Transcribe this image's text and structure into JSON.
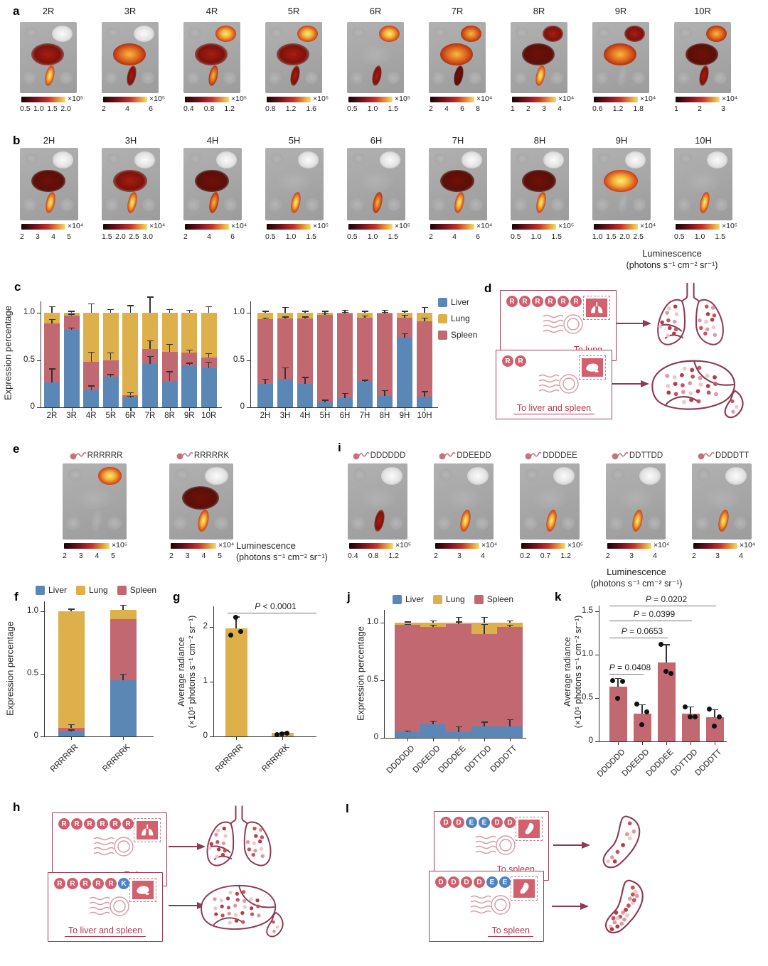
{
  "figure": {
    "panel_labels": {
      "a": "a",
      "b": "b",
      "c": "c",
      "d": "d",
      "e": "e",
      "f": "f",
      "g": "g",
      "h": "h",
      "i": "i",
      "j": "j",
      "k": "k",
      "l": "l"
    },
    "luminescence_label": "Luminescence",
    "luminescence_units": "(photons s⁻¹ cm⁻² sr⁻¹)"
  },
  "colors": {
    "liver_bar": "#5b87b7",
    "lung_bar": "#ddb04c",
    "spleen_bar": "#c16871",
    "illustration_outline": "#8d3a52",
    "letter_pink": "#d05f6d",
    "letter_blue": "#4d82c4",
    "dest_text": "#b03a50",
    "scale_gradient": [
      "#1a0404",
      "#7c1420",
      "#c73428",
      "#e89a3c",
      "#eee069"
    ]
  },
  "panel_a": {
    "tiles": [
      {
        "title": "2R",
        "scale_ticks": [
          "0.5",
          "1.0",
          "1.5",
          "2.0"
        ],
        "scale_exp": "×10⁵",
        "organs": {
          "lungs": "white",
          "liver": "red",
          "spleen": "hot"
        }
      },
      {
        "title": "3R",
        "scale_ticks": [
          "2",
          "4",
          "6"
        ],
        "scale_exp": "×10⁵",
        "organs": {
          "lungs": "white",
          "liver": "orange",
          "spleen": "red"
        }
      },
      {
        "title": "4R",
        "scale_ticks": [
          "0.4",
          "0.8",
          "1.2"
        ],
        "scale_exp": "×10⁵",
        "organs": {
          "lungs": "hot",
          "liver": "red",
          "spleen": "orange"
        }
      },
      {
        "title": "5R",
        "scale_ticks": [
          "0.8",
          "1.2",
          "1.6"
        ],
        "scale_exp": "×10⁵",
        "organs": {
          "lungs": "hot",
          "liver": "red",
          "spleen": "red"
        }
      },
      {
        "title": "6R",
        "scale_ticks": [
          "0.5",
          "1.0",
          "1.5"
        ],
        "scale_exp": "×10⁵",
        "organs": {
          "lungs": "hot",
          "liver": "none",
          "spleen": "red"
        }
      },
      {
        "title": "7R",
        "scale_ticks": [
          "2",
          "4",
          "6",
          "8"
        ],
        "scale_exp": "×10⁴",
        "organs": {
          "lungs": "orange",
          "liver": "orange",
          "spleen": "darkred"
        }
      },
      {
        "title": "8R",
        "scale_ticks": [
          "1",
          "2",
          "3",
          "4"
        ],
        "scale_exp": "×10⁴",
        "organs": {
          "lungs": "red",
          "liver": "darkred",
          "spleen": "hot"
        }
      },
      {
        "title": "9R",
        "scale_ticks": [
          "0.6",
          "1.2",
          "1.8"
        ],
        "scale_exp": "×10⁴",
        "organs": {
          "lungs": "red",
          "liver": "orange",
          "spleen": "none"
        }
      },
      {
        "title": "10R",
        "scale_ticks": [
          "1",
          "2",
          "3"
        ],
        "scale_exp": "×10⁴",
        "organs": {
          "lungs": "orange",
          "liver": "darkred",
          "spleen": "red"
        }
      }
    ]
  },
  "panel_b": {
    "tiles": [
      {
        "title": "2H",
        "scale_ticks": [
          "2",
          "3",
          "4",
          "5"
        ],
        "scale_exp": "×10⁴",
        "organs": {
          "lungs": "white",
          "liver": "darkred",
          "spleen": "hot"
        }
      },
      {
        "title": "3H",
        "scale_ticks": [
          "1.5",
          "2.0",
          "2.5",
          "3.0"
        ],
        "scale_exp": "×10⁴",
        "organs": {
          "lungs": "white",
          "liver": "red",
          "spleen": "hot"
        }
      },
      {
        "title": "4H",
        "scale_ticks": [
          "2",
          "4",
          "6"
        ],
        "scale_exp": "×10⁴",
        "organs": {
          "lungs": "white",
          "liver": "darkred",
          "spleen": "orange"
        }
      },
      {
        "title": "5H",
        "scale_ticks": [
          "0.5",
          "1.0",
          "1.5"
        ],
        "scale_exp": "×10⁵",
        "organs": {
          "lungs": "white",
          "liver": "none",
          "spleen": "hot"
        }
      },
      {
        "title": "6H",
        "scale_ticks": [
          "0.5",
          "1.0",
          "1.5"
        ],
        "scale_exp": "×10⁵",
        "organs": {
          "lungs": "white",
          "liver": "none",
          "spleen": "orange"
        }
      },
      {
        "title": "7H",
        "scale_ticks": [
          "2",
          "4",
          "6"
        ],
        "scale_exp": "×10⁴",
        "organs": {
          "lungs": "white",
          "liver": "darkred",
          "spleen": "hot"
        }
      },
      {
        "title": "8H",
        "scale_ticks": [
          "0.5",
          "1.0",
          "1.5"
        ],
        "scale_exp": "×10⁵",
        "organs": {
          "lungs": "white",
          "liver": "darkred",
          "spleen": "hot"
        }
      },
      {
        "title": "9H",
        "scale_ticks": [
          "1.0",
          "1.5",
          "2.0",
          "2.5"
        ],
        "scale_exp": "×10⁴",
        "organs": {
          "lungs": "white",
          "liver": "hot",
          "spleen": "none"
        }
      },
      {
        "title": "10H",
        "scale_ticks": [
          "0.5",
          "1.0",
          "1.5"
        ],
        "scale_exp": "×10⁵",
        "organs": {
          "lungs": "white",
          "liver": "none",
          "spleen": "hot"
        }
      }
    ]
  },
  "panel_e": {
    "tiles": [
      {
        "title": "RRRRRR",
        "scale_ticks": [
          "2",
          "3",
          "4",
          "5"
        ],
        "scale_exp": "×10⁵",
        "organs": {
          "lungs": "hot",
          "liver": "none",
          "spleen": "none"
        }
      },
      {
        "title": "RRRRRK",
        "scale_ticks": [
          "2",
          "3",
          "4",
          "5"
        ],
        "scale_exp": "×10⁴",
        "organs": {
          "lungs": "white",
          "liver": "darkred",
          "spleen": "hot"
        }
      }
    ]
  },
  "panel_i": {
    "tiles": [
      {
        "title": "DDDDDD",
        "scale_ticks": [
          "0.4",
          "0.8",
          "1.2"
        ],
        "scale_exp": "×10⁵",
        "organs": {
          "lungs": "white",
          "liver": "none",
          "spleen": "red"
        }
      },
      {
        "title": "DDEEDD",
        "scale_ticks": [
          "2",
          "3",
          "4"
        ],
        "scale_exp": "×10⁴",
        "organs": {
          "lungs": "white",
          "liver": "none",
          "spleen": "hot"
        }
      },
      {
        "title": "DDDDEE",
        "scale_ticks": [
          "0.2",
          "0.7",
          "1.2"
        ],
        "scale_exp": "×10⁵",
        "organs": {
          "lungs": "white",
          "liver": "none",
          "spleen": "hot"
        }
      },
      {
        "title": "DDTTDD",
        "scale_ticks": [
          "2",
          "3",
          "4"
        ],
        "scale_exp": "×10⁴",
        "organs": {
          "lungs": "white",
          "liver": "none",
          "spleen": "hot"
        }
      },
      {
        "title": "DDDDTT",
        "scale_ticks": [
          "2",
          "3",
          "4"
        ],
        "scale_exp": "×10⁴",
        "organs": {
          "lungs": "white",
          "liver": "none",
          "spleen": "hot"
        }
      }
    ]
  },
  "chart_data": [
    {
      "id": "c_left",
      "type": "stacked_bar",
      "ylabel": "Expression percentage",
      "yticks": [
        "0",
        "0.5",
        "1.0"
      ],
      "ylim": [
        0,
        1.17
      ],
      "categories": [
        "2R",
        "3R",
        "4R",
        "5R",
        "6R",
        "7R",
        "8R",
        "9R",
        "10R"
      ],
      "series": [
        {
          "name": "Liver",
          "values": [
            0.26,
            0.82,
            0.18,
            0.32,
            0.1,
            0.46,
            0.28,
            0.44,
            0.41
          ]
        },
        {
          "name": "Spleen",
          "values": [
            0.63,
            0.15,
            0.3,
            0.18,
            0.03,
            0.16,
            0.31,
            0.14,
            0.12
          ]
        },
        {
          "name": "Lung",
          "values": [
            0.11,
            0.03,
            0.52,
            0.5,
            0.87,
            0.38,
            0.41,
            0.42,
            0.47
          ]
        }
      ],
      "errors": {
        "liver": [
          0.15,
          0.02,
          0.05,
          0.03,
          0.02,
          0.08,
          0.1,
          0.03,
          0.07
        ],
        "liver_spleen": [
          0.04,
          0.02,
          0.11,
          0.08,
          0.03,
          0.09,
          0.08,
          0.03,
          0.04
        ],
        "total": [
          0.07,
          0.02,
          0.1,
          0.04,
          0.08,
          0.17,
          0.04,
          0.03,
          0.07
        ]
      }
    },
    {
      "id": "c_right",
      "type": "stacked_bar",
      "ylabel": "",
      "yticks": [
        "0",
        "0.5",
        "1.0"
      ],
      "ylim": [
        0,
        1.17
      ],
      "categories": [
        "2H",
        "3H",
        "4H",
        "5H",
        "6H",
        "7H",
        "8H",
        "9H",
        "10H"
      ],
      "series": [
        {
          "name": "Liver",
          "values": [
            0.25,
            0.3,
            0.25,
            0.05,
            0.1,
            0.27,
            0.12,
            0.74,
            0.11
          ]
        },
        {
          "name": "Spleen",
          "values": [
            0.68,
            0.64,
            0.69,
            0.93,
            0.89,
            0.68,
            0.87,
            0.21,
            0.8
          ]
        },
        {
          "name": "Lung",
          "values": [
            0.07,
            0.06,
            0.06,
            0.02,
            0.01,
            0.05,
            0.01,
            0.05,
            0.09
          ]
        }
      ],
      "errors": {
        "liver": [
          0.05,
          0.12,
          0.07,
          0.03,
          0.05,
          0.02,
          0.06,
          0.04,
          0.06
        ],
        "liver_spleen": [
          0.02,
          0.02,
          0.02,
          0.02,
          0.02,
          0.02,
          0.02,
          0.03,
          0.04
        ],
        "total": [
          0.02,
          0.06,
          0.02,
          0.02,
          0.03,
          0.02,
          0.03,
          0.02,
          0.06
        ]
      },
      "legend": [
        "Liver",
        "Lung",
        "Spleen"
      ],
      "legend_position": "right"
    },
    {
      "id": "f",
      "type": "stacked_bar",
      "ylabel": "Expression percentage",
      "yticks": [
        "0",
        "0.5",
        "1.0"
      ],
      "ylim": [
        0,
        1.08
      ],
      "categories": [
        "RRRRRR",
        "RRRRRK"
      ],
      "series": [
        {
          "name": "Liver",
          "values": [
            0.04,
            0.45
          ]
        },
        {
          "name": "Spleen",
          "values": [
            0.03,
            0.49
          ]
        },
        {
          "name": "Lung",
          "values": [
            0.93,
            0.07
          ]
        }
      ],
      "errors": {
        "liver": [
          0.015,
          0.05
        ],
        "liver_spleen": [
          0.025,
          0.0
        ],
        "total": [
          0.02,
          0.04
        ]
      },
      "legend": [
        "Liver",
        "Lung",
        "Spleen"
      ],
      "legend_position": "top",
      "rotate_categories": true
    },
    {
      "id": "g",
      "type": "bar",
      "bar_color": "lung",
      "yticks": [
        "0",
        "1",
        "2"
      ],
      "ylim": [
        0,
        2.35
      ],
      "ylabel": "Average radiance",
      "ylabel_units": "(×10⁵ photons s⁻¹ cm⁻² sr⁻¹)",
      "categories": [
        "RRRRRR",
        "RRRRRK"
      ],
      "values": [
        1.97,
        0.06
      ],
      "errors": [
        0.22,
        0.02
      ],
      "points": [
        [
          1.85,
          1.92,
          2.18
        ],
        [
          0.03,
          0.06,
          0.04
        ]
      ],
      "significance": [
        {
          "label": "P < 0.0001",
          "from": "RRRRRR",
          "to": "RRRRRK"
        }
      ],
      "rotate_categories": true
    },
    {
      "id": "j",
      "type": "stacked_bar",
      "ylabel": "Expression percentage",
      "yticks": [
        "0",
        "0.5",
        "1.0"
      ],
      "ylim": [
        0,
        1.1
      ],
      "categories": [
        "DDDDDD",
        "DDEEDD",
        "DDDDEE",
        "DDTTDD",
        "DDDDTT"
      ],
      "series": [
        {
          "name": "Liver",
          "values": [
            0.05,
            0.12,
            0.05,
            0.1,
            0.1
          ]
        },
        {
          "name": "Spleen",
          "values": [
            0.93,
            0.84,
            0.94,
            0.8,
            0.86
          ]
        },
        {
          "name": "Lung",
          "values": [
            0.02,
            0.04,
            0.01,
            0.1,
            0.04
          ]
        }
      ],
      "errors": {
        "liver": [
          0.01,
          0.03,
          0.05,
          0.04,
          0.06
        ],
        "liver_spleen": [
          0.01,
          0.02,
          0.02,
          0.09,
          0.02
        ],
        "total": [
          0.01,
          0.02,
          0.05,
          0.05,
          0.02
        ]
      },
      "legend": [
        "Liver",
        "Lung",
        "Spleen"
      ],
      "legend_position": "top",
      "rotate_categories": true
    },
    {
      "id": "k",
      "type": "bar",
      "bar_color": "spleen",
      "yticks": [
        "0",
        "0.5",
        "1.0",
        "1.5"
      ],
      "ylim": [
        0,
        1.57
      ],
      "ylabel": "Average radiance",
      "ylabel_units": "(×10⁵ photons s⁻¹ cm⁻² sr⁻¹)",
      "categories": [
        "DDDDDD",
        "DDEEDD",
        "DDDDEE",
        "DDTTDD",
        "DDDDTT"
      ],
      "values": [
        0.63,
        0.32,
        0.91,
        0.32,
        0.28
      ],
      "errors": [
        0.1,
        0.11,
        0.21,
        0.08,
        0.09
      ],
      "points": [
        [
          0.7,
          0.69,
          0.5
        ],
        [
          0.43,
          0.34,
          0.19
        ],
        [
          1.12,
          0.78,
          0.81
        ],
        [
          0.4,
          0.28,
          0.28
        ],
        [
          0.37,
          0.28,
          0.18
        ]
      ],
      "significance": [
        {
          "label": "P = 0.0408",
          "from": "DDDDDD",
          "to": "DDEEDD"
        },
        {
          "label": "P = 0.0653",
          "from": "DDDDDD",
          "to": "DDDDEE"
        },
        {
          "label": "P = 0.0399",
          "from": "DDDDDD",
          "to": "DDTTDD"
        },
        {
          "label": "P = 0.0202",
          "from": "DDDDDD",
          "to": "DDDDTT"
        }
      ],
      "rotate_categories": true
    }
  ],
  "panel_d": {
    "envelopes": [
      {
        "letters": "RRRRRR",
        "letter_colors": "pppppp",
        "stamp": "lungs",
        "destination": "To lung"
      },
      {
        "letters": "RR",
        "letter_colors": "pp",
        "stamp": "liver",
        "destination": "To liver and spleen"
      }
    ],
    "targets": [
      "lungs",
      "liver_spleen"
    ]
  },
  "panel_h": {
    "envelopes": [
      {
        "letters": "RRRRRR",
        "letter_colors": "pppppp",
        "stamp": "lungs",
        "destination": "To lung"
      },
      {
        "letters": "RRRRRK",
        "letter_colors": "pppppb",
        "stamp": "liver",
        "destination": "To liver and spleen"
      }
    ],
    "targets": [
      "lungs",
      "liver_spleen"
    ]
  },
  "panel_l": {
    "envelopes": [
      {
        "letters": "DDEEDD",
        "letter_colors": "ppbbpp",
        "stamp": "spleen",
        "destination": "To spleen"
      },
      {
        "letters": "DDDDEE",
        "letter_colors": "ppppbb",
        "stamp": "spleen",
        "destination": "To spleen"
      }
    ],
    "targets": [
      "spleen_sparse",
      "spleen_dense"
    ]
  }
}
